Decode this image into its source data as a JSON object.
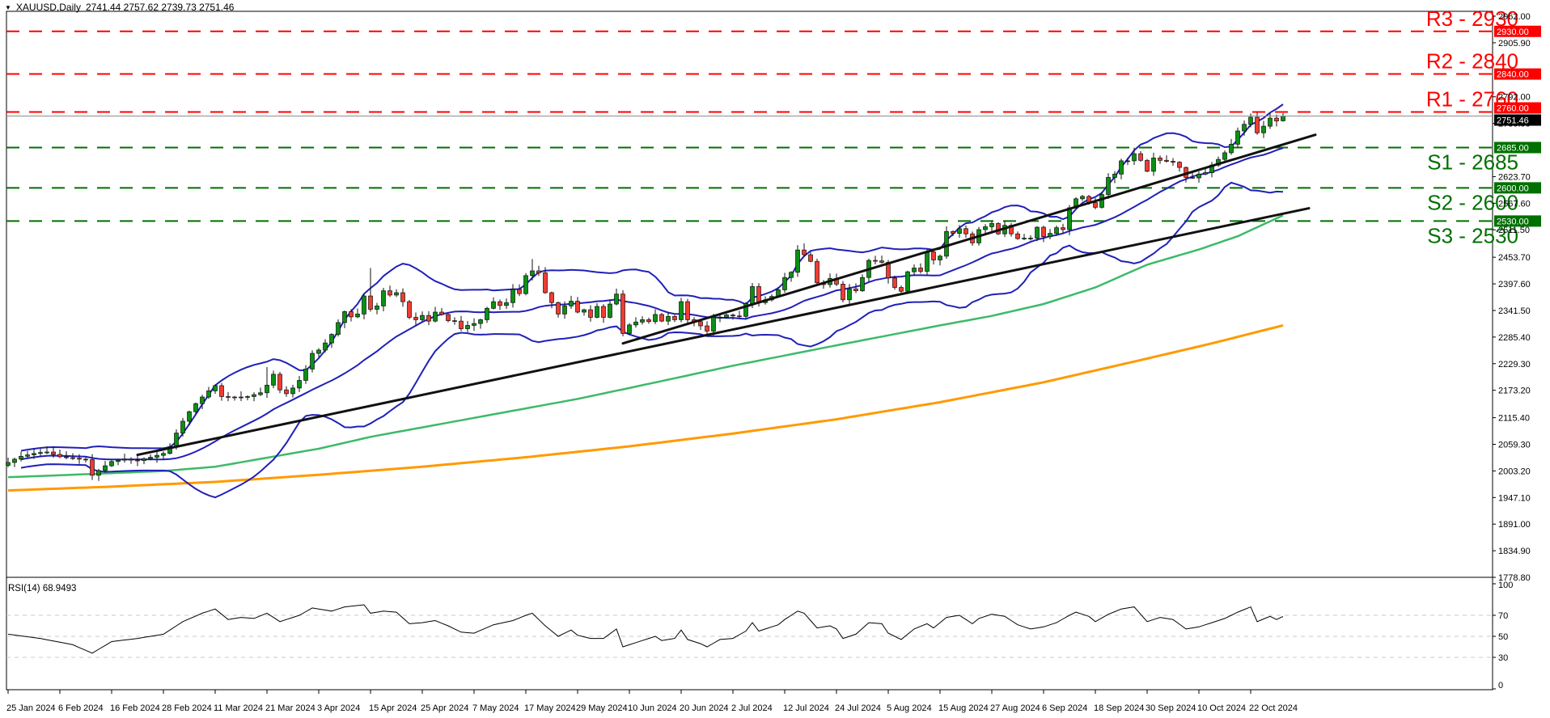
{
  "header": {
    "dropdown_icon": "▼",
    "symbol": "XAUUSD,Daily",
    "ohlc": "2741.44 2757.62 2739.73 2751.46"
  },
  "colors": {
    "bull": "#0c9014",
    "bear": "#f03c32",
    "wick": "#111111",
    "bollinger": "#2020b8",
    "sma100": "#3dba68",
    "sma200": "#ff9a00",
    "trendline": "#111111",
    "resistance": "#ff0000",
    "support": "#007000",
    "bid_line": "#8c8c8c",
    "rsi_line": "#000000",
    "rsi_grid": "#c8c8c8",
    "axis_text": "#000000",
    "badge_text": "#ffffff",
    "current_badge_bg": "#000000"
  },
  "levels": [
    {
      "id": "R3",
      "label": "R3 - 2930",
      "price": 2930,
      "badge": "2930.00",
      "type": "resistance",
      "badge_dy": 0
    },
    {
      "id": "R2",
      "label": "R2 - 2840",
      "price": 2840,
      "badge": "2840.00",
      "type": "resistance",
      "badge_dy": 0
    },
    {
      "id": "R1",
      "label": "R1 - 2760",
      "price": 2760,
      "badge": "2760.00",
      "type": "resistance",
      "badge_dy": -5
    },
    {
      "id": "S1",
      "label": "S1 - 2685",
      "price": 2685,
      "badge": "2685.00",
      "type": "support",
      "badge_dy": 0
    },
    {
      "id": "S2",
      "label": "S2 - 2600",
      "price": 2600,
      "badge": "2600.00",
      "type": "support",
      "badge_dy": 0
    },
    {
      "id": "S3",
      "label": "S3 - 2530",
      "price": 2530,
      "badge": "2530.00",
      "type": "support",
      "badge_dy": 0
    }
  ],
  "price_axis": {
    "ticks": [
      "2962.00",
      "2905.90",
      "2792.00",
      "2735.90",
      "2623.70",
      "2567.60",
      "2511.50",
      "2453.70",
      "2397.60",
      "2341.50",
      "2285.40",
      "2229.30",
      "2173.20",
      "2115.40",
      "2059.30",
      "2003.20",
      "1947.10",
      "1891.00",
      "1834.90",
      "1778.80"
    ],
    "current": {
      "value": "2751.46",
      "price": 2751.46,
      "badge_dy": 5
    }
  },
  "time_axis": {
    "labels": [
      "25 Jan 2024",
      "6 Feb 2024",
      "16 Feb 2024",
      "28 Feb 2024",
      "11 Mar 2024",
      "21 Mar 2024",
      "3 Apr 2024",
      "15 Apr 2024",
      "25 Apr 2024",
      "7 May 2024",
      "17 May 2024",
      "29 May 2024",
      "10 Jun 2024",
      "20 Jun 2024",
      "2 Jul 2024",
      "12 Jul 2024",
      "24 Jul 2024",
      "5 Aug 2024",
      "15 Aug 2024",
      "27 Aug 2024",
      "6 Sep 2024",
      "18 Sep 2024",
      "30 Sep 2024",
      "10 Oct 2024",
      "22 Oct 2024"
    ]
  },
  "rsi": {
    "label": "RSI(14) 68.9493",
    "period": 14,
    "last": 68.9493,
    "ticks": [
      "100",
      "70",
      "50",
      "30",
      "0"
    ],
    "tick_values": [
      100,
      70,
      50,
      30,
      0
    ],
    "grid_values": [
      70,
      50,
      30
    ],
    "points": [
      [
        0,
        52
      ],
      [
        5,
        48
      ],
      [
        10,
        42
      ],
      [
        13,
        34
      ],
      [
        16,
        45
      ],
      [
        20,
        48
      ],
      [
        24,
        52
      ],
      [
        27,
        64
      ],
      [
        30,
        72
      ],
      [
        32,
        76
      ],
      [
        34,
        66
      ],
      [
        36,
        68
      ],
      [
        38,
        67
      ],
      [
        40,
        72
      ],
      [
        42,
        64
      ],
      [
        45,
        70
      ],
      [
        47,
        77
      ],
      [
        50,
        74
      ],
      [
        52,
        78
      ],
      [
        55,
        80
      ],
      [
        56,
        72
      ],
      [
        58,
        74
      ],
      [
        60,
        73
      ],
      [
        62,
        62
      ],
      [
        64,
        63
      ],
      [
        66,
        65
      ],
      [
        68,
        60
      ],
      [
        70,
        54
      ],
      [
        72,
        53
      ],
      [
        75,
        61
      ],
      [
        78,
        65
      ],
      [
        80,
        70
      ],
      [
        81,
        72
      ],
      [
        83,
        60
      ],
      [
        85,
        50
      ],
      [
        87,
        56
      ],
      [
        88,
        51
      ],
      [
        90,
        48
      ],
      [
        92,
        48
      ],
      [
        94,
        57
      ],
      [
        95,
        40
      ],
      [
        97,
        44
      ],
      [
        98,
        46
      ],
      [
        100,
        50
      ],
      [
        101,
        46
      ],
      [
        103,
        48
      ],
      [
        104,
        56
      ],
      [
        105,
        47
      ],
      [
        107,
        43
      ],
      [
        108,
        40
      ],
      [
        110,
        47
      ],
      [
        112,
        48
      ],
      [
        114,
        55
      ],
      [
        115,
        63
      ],
      [
        116,
        55
      ],
      [
        117,
        57
      ],
      [
        119,
        61
      ],
      [
        120,
        66
      ],
      [
        122,
        74
      ],
      [
        123,
        72
      ],
      [
        125,
        58
      ],
      [
        127,
        60
      ],
      [
        128,
        57
      ],
      [
        129,
        48
      ],
      [
        131,
        52
      ],
      [
        133,
        63
      ],
      [
        135,
        62
      ],
      [
        136,
        53
      ],
      [
        138,
        47
      ],
      [
        140,
        57
      ],
      [
        142,
        62
      ],
      [
        143,
        58
      ],
      [
        145,
        68
      ],
      [
        147,
        70
      ],
      [
        149,
        62
      ],
      [
        150,
        67
      ],
      [
        152,
        71
      ],
      [
        154,
        69
      ],
      [
        156,
        61
      ],
      [
        158,
        57
      ],
      [
        160,
        59
      ],
      [
        162,
        63
      ],
      [
        164,
        70
      ],
      [
        165,
        73
      ],
      [
        167,
        69
      ],
      [
        168,
        64
      ],
      [
        170,
        71
      ],
      [
        172,
        76
      ],
      [
        174,
        78
      ],
      [
        176,
        64
      ],
      [
        178,
        68
      ],
      [
        180,
        66
      ],
      [
        182,
        57
      ],
      [
        184,
        59
      ],
      [
        186,
        63
      ],
      [
        188,
        67
      ],
      [
        190,
        73
      ],
      [
        192,
        78
      ],
      [
        193,
        64
      ],
      [
        195,
        69
      ],
      [
        196,
        66
      ],
      [
        197,
        68.9
      ]
    ]
  },
  "chart_data": {
    "type": "candlestick",
    "symbol": "XAUUSD",
    "timeframe": "Daily",
    "title": "XAUUSD,Daily",
    "ylim": [
      1778.8,
      2962.0
    ],
    "bars": 198,
    "first_open": 2015,
    "last_bar": {
      "open": 2741.44,
      "high": 2757.62,
      "low": 2739.73,
      "close": 2751.46
    },
    "closes": [
      2021,
      2028,
      2034,
      2037,
      2040,
      2042,
      2043,
      2038,
      2033,
      2031,
      2030,
      2028,
      2027,
      1994,
      2004,
      2014,
      2023,
      2026,
      2028,
      2026,
      2025,
      2029,
      2032,
      2036,
      2040,
      2054,
      2083,
      2108,
      2128,
      2145,
      2159,
      2172,
      2183,
      2160,
      2159,
      2158,
      2159,
      2160,
      2164,
      2168,
      2184,
      2207,
      2174,
      2166,
      2178,
      2194,
      2218,
      2251,
      2258,
      2273,
      2291,
      2316,
      2339,
      2328,
      2334,
      2372,
      2344,
      2351,
      2383,
      2374,
      2379,
      2360,
      2327,
      2322,
      2331,
      2319,
      2338,
      2333,
      2320,
      2319,
      2303,
      2310,
      2314,
      2322,
      2346,
      2360,
      2352,
      2358,
      2386,
      2377,
      2415,
      2425,
      2421,
      2379,
      2358,
      2334,
      2351,
      2361,
      2338,
      2343,
      2327,
      2350,
      2327,
      2355,
      2376,
      2293,
      2311,
      2317,
      2322,
      2318,
      2333,
      2319,
      2329,
      2322,
      2360,
      2322,
      2318,
      2309,
      2298,
      2327,
      2327,
      2332,
      2330,
      2329,
      2356,
      2392,
      2358,
      2364,
      2371,
      2385,
      2411,
      2422,
      2469,
      2459,
      2445,
      2400,
      2396,
      2409,
      2397,
      2364,
      2387,
      2383,
      2411,
      2447,
      2446,
      2443,
      2410,
      2390,
      2382,
      2423,
      2431,
      2424,
      2465,
      2448,
      2456,
      2508,
      2504,
      2514,
      2503,
      2484,
      2512,
      2518,
      2525,
      2503,
      2521,
      2503,
      2493,
      2494,
      2494,
      2517,
      2497,
      2504,
      2516,
      2512,
      2558,
      2577,
      2582,
      2569,
      2559,
      2586,
      2622,
      2629,
      2657,
      2657,
      2672,
      2658,
      2635,
      2663,
      2658,
      2656,
      2654,
      2643,
      2622,
      2621,
      2629,
      2632,
      2648,
      2660,
      2674,
      2692,
      2720,
      2734,
      2749,
      2716,
      2730,
      2747,
      2741,
      2751.46
    ],
    "wick_overrides": {
      "13": {
        "low": 1984
      },
      "40": {
        "high": 2222
      },
      "56": {
        "high": 2431
      },
      "81": {
        "high": 2450
      },
      "95": {
        "low": 2287
      },
      "123": {
        "high": 2483
      },
      "174": {
        "high": 2685
      }
    },
    "overlays": {
      "bollinger": {
        "period": 20,
        "deviation": 2
      },
      "sma100_keypoints": [
        [
          0,
          1990
        ],
        [
          8,
          1994
        ],
        [
          24,
          2003
        ],
        [
          32,
          2012
        ],
        [
          48,
          2050
        ],
        [
          56,
          2075
        ],
        [
          72,
          2115
        ],
        [
          88,
          2155
        ],
        [
          96,
          2178
        ],
        [
          112,
          2225
        ],
        [
          128,
          2268
        ],
        [
          144,
          2310
        ],
        [
          152,
          2330
        ],
        [
          160,
          2355
        ],
        [
          168,
          2390
        ],
        [
          176,
          2438
        ],
        [
          184,
          2470
        ],
        [
          190,
          2498
        ],
        [
          197,
          2542
        ]
      ],
      "sma200_keypoints": [
        [
          0,
          1962
        ],
        [
          16,
          1970
        ],
        [
          32,
          1980
        ],
        [
          48,
          1995
        ],
        [
          64,
          2012
        ],
        [
          80,
          2032
        ],
        [
          96,
          2055
        ],
        [
          112,
          2082
        ],
        [
          128,
          2112
        ],
        [
          144,
          2148
        ],
        [
          160,
          2190
        ],
        [
          176,
          2240
        ],
        [
          186,
          2272
        ],
        [
          197,
          2310
        ]
      ]
    },
    "trendlines": [
      {
        "name": "uptrend-line-long",
        "from": [
          20,
          2037
        ],
        "to": [
          201,
          2557
        ]
      },
      {
        "name": "uptrend-line-steep",
        "from": [
          95,
          2272
        ],
        "to": [
          202,
          2712
        ]
      }
    ]
  }
}
